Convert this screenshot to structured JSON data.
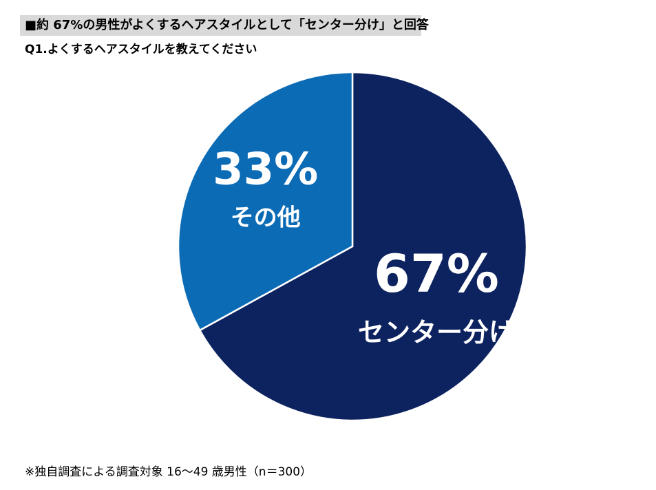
{
  "headline": "■約 67%の男性がよくするヘアスタイルとして「センター分け」と回答",
  "question": "Q1.よくするヘアスタイルを教えてください",
  "chart_data": {
    "type": "pie",
    "title": "",
    "slices": [
      {
        "label": "センター分け",
        "value": 67,
        "value_label": "67%",
        "color": "#0d2360"
      },
      {
        "label": "その他",
        "value": 33,
        "value_label": "33%",
        "color": "#0b6bb5"
      }
    ],
    "slice_border_color": "#ffffff"
  },
  "footnote": "※独自調査による調査対象 16～49 歳男性（n＝300）"
}
